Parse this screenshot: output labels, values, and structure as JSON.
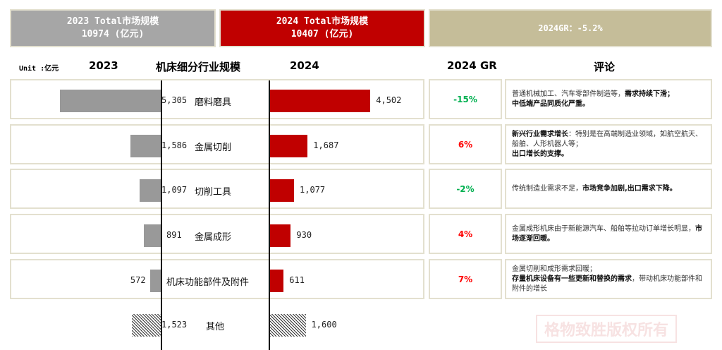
{
  "summary": {
    "total_2023_label": "2023 Total市场规模",
    "total_2023_value": "10974 (亿元)",
    "total_2024_label": "2024 Total市场规模",
    "total_2024_value": "10407 (亿元)",
    "gr_label": "2024GR：-5.2%"
  },
  "headers": {
    "unit": "Unit :亿元",
    "y2023": "2023",
    "segment": "机床细分行业规模",
    "y2024": "2024",
    "gr": "2024 GR",
    "comment": "评论"
  },
  "colors": {
    "gray": "#999999",
    "red": "#c00000",
    "tan": "#c5bd99",
    "green": "#00b050",
    "pos": "#ff0000"
  },
  "chart_data": {
    "type": "bar",
    "title": "机床细分行业规模",
    "unit": "亿元",
    "categories": [
      "磨料磨具",
      "金属切削",
      "切削工具",
      "金属成形",
      "机床功能部件及附件",
      "其他"
    ],
    "series": [
      {
        "name": "2023",
        "values": [
          5305,
          1586,
          1097,
          891,
          572,
          1523
        ],
        "labels": [
          "5,305",
          "1,586",
          "1,097",
          "891",
          "572",
          "1,523"
        ]
      },
      {
        "name": "2024",
        "values": [
          4502,
          1687,
          1077,
          930,
          611,
          1600
        ],
        "labels": [
          "4,502",
          "1,687",
          "1,077",
          "930",
          "611",
          "1,600"
        ]
      }
    ],
    "growth": [
      "-15%",
      "6%",
      "-2%",
      "4%",
      "7%"
    ]
  },
  "comments": [
    [
      {
        "t": "普通机械加工、汽车零部件制造等，",
        "b": false
      },
      {
        "t": "需求持续下滑；",
        "b": true
      },
      {
        "br": true
      },
      {
        "t": "中低端产品同质化严重。",
        "b": true
      }
    ],
    [
      {
        "t": "新兴行业需求增长",
        "b": true
      },
      {
        "t": "：特别是在高端制造业领域，如航空航天、船舶、人形机器人等；",
        "b": false
      },
      {
        "br": true
      },
      {
        "t": "出口增长的支撑。",
        "b": true
      }
    ],
    [
      {
        "t": "传统制造业需求不足，",
        "b": false
      },
      {
        "t": "市场竞争加剧,出口需求下降。",
        "b": true
      }
    ],
    [
      {
        "t": "金属成形机床由于新能源汽车、船舶等拉动订单增长明显，",
        "b": false
      },
      {
        "t": "市场逐渐回暖。",
        "b": true
      }
    ],
    [
      {
        "t": "金属切削和成形需求回暖；",
        "b": false
      },
      {
        "br": true
      },
      {
        "t": "存量机床设备有一些更新和替换的需求",
        "b": true
      },
      {
        "t": "，带动机床功能部件和附件的增长",
        "b": false
      }
    ]
  ],
  "watermark": "格物致胜版权所有"
}
